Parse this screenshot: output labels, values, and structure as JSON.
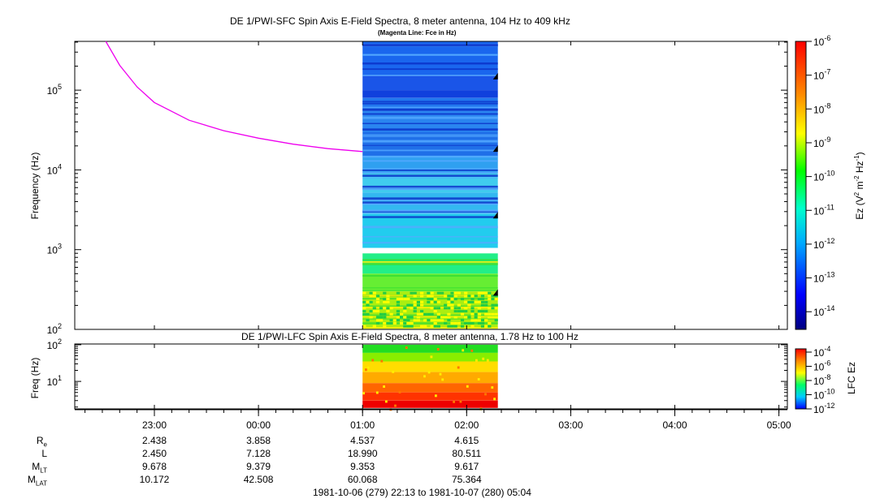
{
  "chart_data": [
    {
      "type": "heatmap",
      "title": "DE 1/PWI-SFC  Spin Axis E-Field Spectra, 8 meter antenna, 104 Hz to 409 kHz",
      "subtitle": "(Magenta Line: Fce in Hz)",
      "ylabel": "Frequency (Hz)",
      "yscale": "log",
      "ylim": [
        100,
        409000
      ],
      "yticks": [
        "10^2",
        "10^3",
        "10^4",
        "10^5"
      ],
      "data_time_range": [
        "01:00",
        "02:18"
      ],
      "colorbar": {
        "label": "Ez (V^2 m^-2 Hz^-1)",
        "scale": "log",
        "range": [
          3e-15,
          1e-06
        ],
        "ticks": [
          "10^-6",
          "10^-7",
          "10^-8",
          "10^-9",
          "10^-10",
          "10^-11",
          "10^-12",
          "10^-13",
          "10^-14"
        ]
      },
      "series": [
        {
          "name": "Fce",
          "color": "#ee00ee",
          "x": [
            "22:32",
            "22:40",
            "22:50",
            "23:00",
            "23:20",
            "23:40",
            "00:00",
            "00:20",
            "00:40",
            "01:00"
          ],
          "y": [
            409000,
            205000,
            110000,
            70000,
            42000,
            31000,
            25000,
            21000,
            18500,
            17000
          ]
        }
      ]
    },
    {
      "type": "heatmap",
      "title": "DE 1/PWI-LFC  Spin Axis E-Field Spectra, 8 meter antenna, 1.78 Hz to 100 Hz",
      "ylabel": "Freq (Hz)",
      "yscale": "log",
      "ylim": [
        1.78,
        100
      ],
      "yticks": [
        "10^1",
        "10^2"
      ],
      "colorbar": {
        "label": "LFC Ez",
        "scale": "log",
        "range": [
          1e-12,
          0.0001
        ],
        "ticks": [
          "10^-4",
          "10^-6",
          "10^-8",
          "10^-10",
          "10^-12"
        ]
      }
    }
  ],
  "xaxis": {
    "ticks": [
      "23:00",
      "00:00",
      "01:00",
      "02:00",
      "03:00",
      "04:00",
      "05:00"
    ],
    "time_range": "1981-10-06 (279) 22:13 to 1981-10-07 (280) 05:04"
  },
  "ephemeris": {
    "labels": [
      {
        "main": "R",
        "sub": "e"
      },
      {
        "main": "L",
        "sub": ""
      },
      {
        "main": "M",
        "sub": "LT"
      },
      {
        "main": "M",
        "sub": "LAT"
      }
    ],
    "columns": [
      {
        "time": "23:00",
        "values": [
          "2.438",
          "2.450",
          "9.678",
          "10.172"
        ]
      },
      {
        "time": "00:00",
        "values": [
          "3.858",
          "7.128",
          "9.379",
          "42.508"
        ]
      },
      {
        "time": "01:00",
        "values": [
          "4.537",
          "18.990",
          "9.353",
          "60.068"
        ]
      },
      {
        "time": "02:00",
        "values": [
          "4.615",
          "80.511",
          "9.617",
          "75.364"
        ]
      }
    ]
  }
}
